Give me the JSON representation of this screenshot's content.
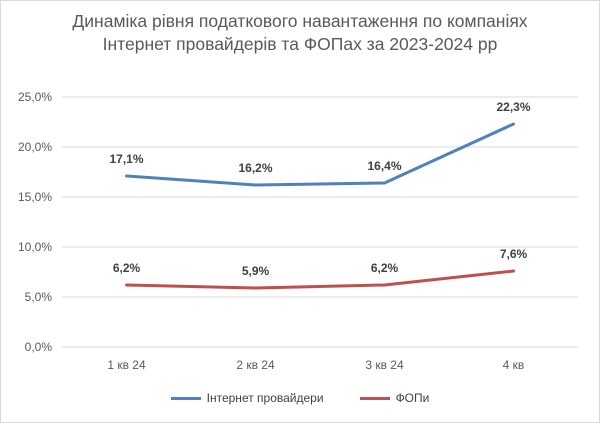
{
  "chart_data": {
    "type": "line",
    "title": "Динаміка рівня податкового навантаження по компаніях Інтернет провайдерів та ФОПах за 2023-2024 рр",
    "categories": [
      "1 кв 24",
      "2 кв 24",
      "3 кв 24",
      "4 кв"
    ],
    "ylim": [
      0,
      25
    ],
    "yticks": [
      "0,0%",
      "5,0%",
      "10,0%",
      "15,0%",
      "20,0%",
      "25,0%"
    ],
    "grid": true,
    "legend_position": "bottom",
    "series": [
      {
        "name": "Інтернет провайдери",
        "color": "#4f81bd",
        "values": [
          17.1,
          16.2,
          16.4,
          22.3
        ],
        "labels": [
          "17,1%",
          "16,2%",
          "16,4%",
          "22,3%"
        ]
      },
      {
        "name": "ФОПи",
        "color": "#c0504d",
        "values": [
          6.2,
          5.9,
          6.2,
          7.6
        ],
        "labels": [
          "6,2%",
          "5,9%",
          "6,2%",
          "7,6%"
        ]
      }
    ]
  }
}
